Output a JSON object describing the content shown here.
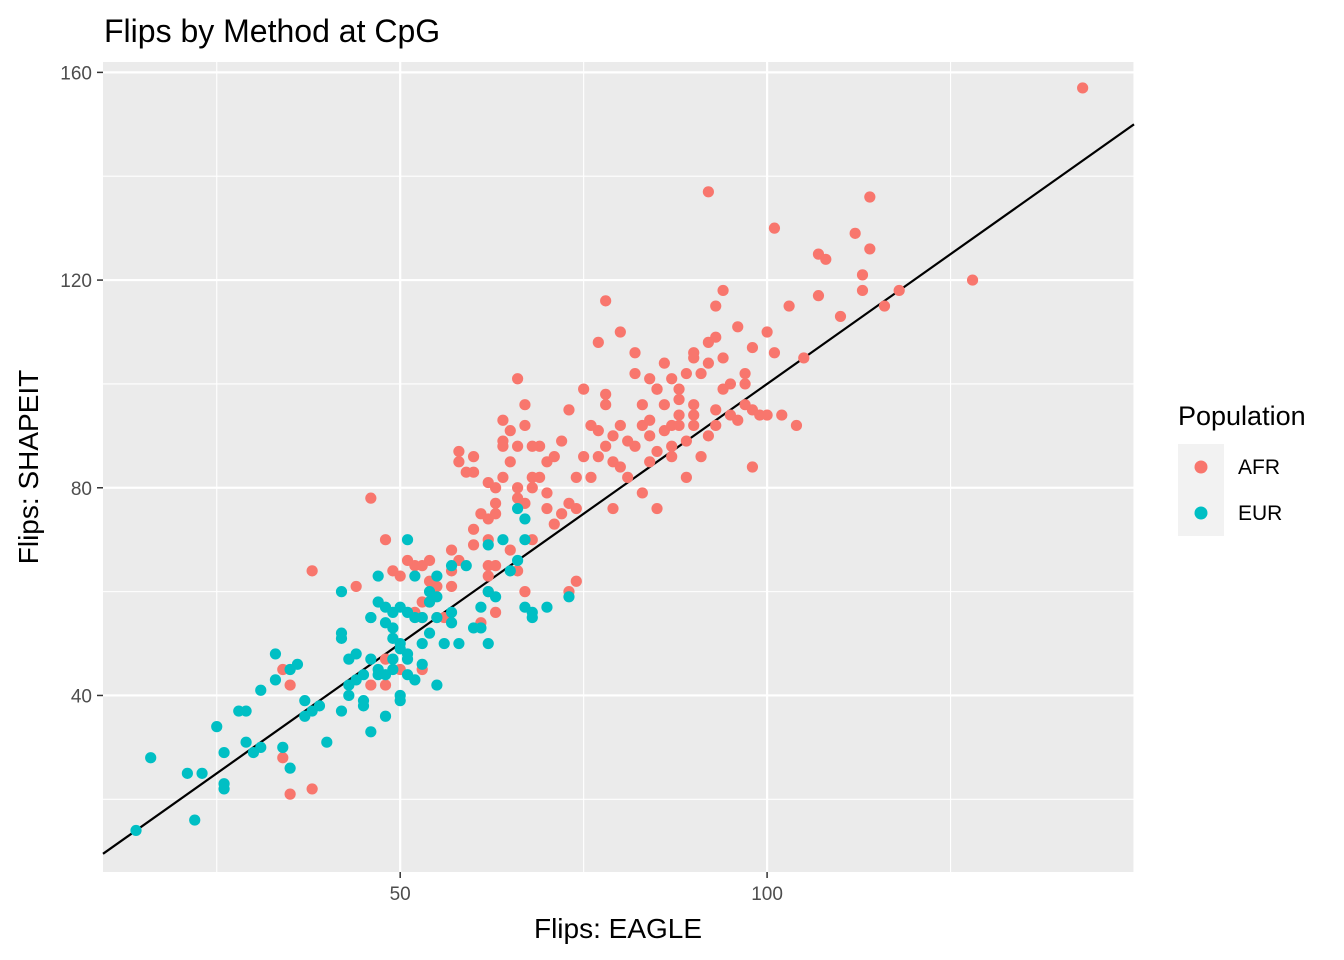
{
  "chart_data": {
    "type": "scatter",
    "title": "Flips by Method at CpG",
    "xlabel": "Flips: EAGLE",
    "ylabel": "Flips: SHAPEIT",
    "xlim": [
      9.5,
      150
    ],
    "ylim": [
      6,
      162
    ],
    "x_ticks": [
      50,
      100
    ],
    "y_ticks": [
      40,
      80,
      120,
      160
    ],
    "grid": true,
    "reference_line": {
      "slope": 1,
      "intercept": 0
    },
    "legend": {
      "title": "Population",
      "position": "right"
    },
    "series": [
      {
        "name": "AFR",
        "color": "#F8766D",
        "points": [
          [
            53,
            65
          ],
          [
            54,
            66
          ],
          [
            52,
            65
          ],
          [
            48,
            70
          ],
          [
            49,
            64
          ],
          [
            50,
            63
          ],
          [
            51,
            66
          ],
          [
            53,
            58
          ],
          [
            55,
            61
          ],
          [
            57,
            61
          ],
          [
            52,
            56
          ],
          [
            53,
            55
          ],
          [
            54,
            62
          ],
          [
            58,
            66
          ],
          [
            57,
            68
          ],
          [
            60,
            69
          ],
          [
            60,
            72
          ],
          [
            62,
            65
          ],
          [
            62,
            60
          ],
          [
            63,
            65
          ],
          [
            65,
            68
          ],
          [
            66,
            64
          ],
          [
            67,
            60
          ],
          [
            68,
            70
          ],
          [
            67,
            77
          ],
          [
            66,
            78
          ],
          [
            66,
            80
          ],
          [
            64,
            82
          ],
          [
            62,
            81
          ],
          [
            60,
            83
          ],
          [
            61,
            75
          ],
          [
            62,
            74
          ],
          [
            63,
            77
          ],
          [
            63,
            80
          ],
          [
            65,
            85
          ],
          [
            66,
            88
          ],
          [
            67,
            92
          ],
          [
            64,
            89
          ],
          [
            58,
            87
          ],
          [
            58,
            85
          ],
          [
            59,
            83
          ],
          [
            60,
            86
          ],
          [
            68,
            80
          ],
          [
            69,
            82
          ],
          [
            70,
            79
          ],
          [
            70,
            76
          ],
          [
            71,
            73
          ],
          [
            72,
            75
          ],
          [
            73,
            77
          ],
          [
            74,
            76
          ],
          [
            74,
            82
          ],
          [
            75,
            86
          ],
          [
            76,
            82
          ],
          [
            77,
            86
          ],
          [
            77,
            91
          ],
          [
            78,
            88
          ],
          [
            79,
            85
          ],
          [
            79,
            90
          ],
          [
            80,
            84
          ],
          [
            81,
            82
          ],
          [
            82,
            88
          ],
          [
            83,
            92
          ],
          [
            84,
            85
          ],
          [
            84,
            90
          ],
          [
            85,
            87
          ],
          [
            86,
            91
          ],
          [
            87,
            92
          ],
          [
            87,
            86
          ],
          [
            88,
            94
          ],
          [
            89,
            89
          ],
          [
            90,
            92
          ],
          [
            90,
            96
          ],
          [
            91,
            86
          ],
          [
            92,
            90
          ],
          [
            93,
            92
          ],
          [
            93,
            95
          ],
          [
            94,
            99
          ],
          [
            95,
            94
          ],
          [
            96,
            93
          ],
          [
            97,
            102
          ],
          [
            98,
            95
          ],
          [
            99,
            94
          ],
          [
            100,
            110
          ],
          [
            101,
            106
          ],
          [
            98,
            107
          ],
          [
            96,
            111
          ],
          [
            94,
            105
          ],
          [
            92,
            104
          ],
          [
            93,
            109
          ],
          [
            90,
            106
          ],
          [
            89,
            102
          ],
          [
            88,
            99
          ],
          [
            88,
            97
          ],
          [
            86,
            104
          ],
          [
            84,
            101
          ],
          [
            85,
            99
          ],
          [
            82,
            102
          ],
          [
            82,
            106
          ],
          [
            80,
            110
          ],
          [
            78,
            116
          ],
          [
            77,
            108
          ],
          [
            75,
            99
          ],
          [
            73,
            95
          ],
          [
            72,
            89
          ],
          [
            71,
            86
          ],
          [
            70,
            85
          ],
          [
            69,
            88
          ],
          [
            68,
            82
          ],
          [
            68,
            88
          ],
          [
            67,
            96
          ],
          [
            66,
            101
          ],
          [
            65,
            91
          ],
          [
            64,
            88
          ],
          [
            64,
            93
          ],
          [
            63,
            75
          ],
          [
            62,
            70
          ],
          [
            62,
            63
          ],
          [
            63,
            56
          ],
          [
            61,
            54
          ],
          [
            57,
            64
          ],
          [
            56,
            55
          ],
          [
            55,
            55
          ],
          [
            54,
            58
          ],
          [
            53,
            45
          ],
          [
            50,
            45
          ],
          [
            48,
            42
          ],
          [
            48,
            47
          ],
          [
            46,
            42
          ],
          [
            44,
            61
          ],
          [
            46,
            78
          ],
          [
            38,
            64
          ],
          [
            34,
            45
          ],
          [
            35,
            42
          ],
          [
            34,
            28
          ],
          [
            35,
            21
          ],
          [
            38,
            22
          ],
          [
            73,
            60
          ],
          [
            74,
            62
          ],
          [
            79,
            76
          ],
          [
            83,
            79
          ],
          [
            85,
            76
          ],
          [
            87,
            88
          ],
          [
            88,
            92
          ],
          [
            89,
            82
          ],
          [
            90,
            105
          ],
          [
            91,
            102
          ],
          [
            92,
            108
          ],
          [
            93,
            115
          ],
          [
            94,
            118
          ],
          [
            92,
            137
          ],
          [
            97,
            100
          ],
          [
            98,
            84
          ],
          [
            100,
            94
          ],
          [
            101,
            130
          ],
          [
            103,
            115
          ],
          [
            102,
            94
          ],
          [
            104,
            92
          ],
          [
            105,
            105
          ],
          [
            107,
            117
          ],
          [
            107,
            125
          ],
          [
            108,
            124
          ],
          [
            110,
            113
          ],
          [
            112,
            129
          ],
          [
            113,
            121
          ],
          [
            113,
            118
          ],
          [
            114,
            126
          ],
          [
            114,
            136
          ],
          [
            116,
            115
          ],
          [
            118,
            118
          ],
          [
            128,
            120
          ],
          [
            143,
            157
          ],
          [
            76,
            92
          ],
          [
            78,
            96
          ],
          [
            80,
            92
          ],
          [
            83,
            96
          ],
          [
            85,
            99
          ],
          [
            86,
            96
          ],
          [
            87,
            101
          ],
          [
            90,
            94
          ],
          [
            95,
            100
          ],
          [
            97,
            96
          ],
          [
            78,
            98
          ],
          [
            81,
            89
          ],
          [
            84,
            93
          ]
        ]
      },
      {
        "name": "EUR",
        "color": "#00BFC4",
        "points": [
          [
            14,
            14
          ],
          [
            16,
            28
          ],
          [
            21,
            25
          ],
          [
            22,
            16
          ],
          [
            23,
            25
          ],
          [
            25,
            34
          ],
          [
            26,
            29
          ],
          [
            26,
            23
          ],
          [
            26,
            22
          ],
          [
            28,
            37
          ],
          [
            29,
            37
          ],
          [
            29,
            31
          ],
          [
            30,
            29
          ],
          [
            31,
            30
          ],
          [
            31,
            41
          ],
          [
            33,
            43
          ],
          [
            33,
            48
          ],
          [
            34,
            30
          ],
          [
            35,
            45
          ],
          [
            35,
            26
          ],
          [
            36,
            46
          ],
          [
            37,
            39
          ],
          [
            37,
            36
          ],
          [
            38,
            37
          ],
          [
            39,
            38
          ],
          [
            42,
            60
          ],
          [
            42,
            52
          ],
          [
            42,
            51
          ],
          [
            43,
            47
          ],
          [
            43,
            42
          ],
          [
            43,
            40
          ],
          [
            44,
            43
          ],
          [
            45,
            44
          ],
          [
            45,
            39
          ],
          [
            45,
            38
          ],
          [
            46,
            47
          ],
          [
            46,
            55
          ],
          [
            47,
            44
          ],
          [
            48,
            36
          ],
          [
            48,
            44
          ],
          [
            49,
            47
          ],
          [
            49,
            51
          ],
          [
            49,
            56
          ],
          [
            50,
            57
          ],
          [
            51,
            56
          ],
          [
            50,
            50
          ],
          [
            51,
            48
          ],
          [
            52,
            55
          ],
          [
            53,
            55
          ],
          [
            53,
            50
          ],
          [
            54,
            58
          ],
          [
            54,
            52
          ],
          [
            55,
            59
          ],
          [
            55,
            55
          ],
          [
            56,
            50
          ],
          [
            57,
            56
          ],
          [
            57,
            54
          ],
          [
            58,
            50
          ],
          [
            60,
            53
          ],
          [
            61,
            57
          ],
          [
            61,
            53
          ],
          [
            62,
            60
          ],
          [
            62,
            50
          ],
          [
            63,
            59
          ],
          [
            64,
            70
          ],
          [
            65,
            64
          ],
          [
            66,
            66
          ],
          [
            66,
            76
          ],
          [
            67,
            74
          ],
          [
            67,
            70
          ],
          [
            67,
            57
          ],
          [
            68,
            55
          ],
          [
            68,
            56
          ],
          [
            70,
            57
          ],
          [
            73,
            59
          ],
          [
            55,
            42
          ],
          [
            53,
            46
          ],
          [
            50,
            40
          ],
          [
            50,
            39
          ],
          [
            52,
            43
          ],
          [
            51,
            44
          ],
          [
            51,
            47
          ],
          [
            48,
            54
          ],
          [
            48,
            57
          ],
          [
            49,
            53
          ],
          [
            46,
            55
          ],
          [
            47,
            58
          ],
          [
            47,
            63
          ],
          [
            52,
            63
          ],
          [
            54,
            60
          ],
          [
            55,
            63
          ],
          [
            57,
            65
          ],
          [
            59,
            65
          ],
          [
            62,
            69
          ],
          [
            51,
            70
          ],
          [
            40,
            31
          ],
          [
            42,
            37
          ],
          [
            44,
            48
          ],
          [
            46,
            33
          ],
          [
            47,
            45
          ],
          [
            49,
            45
          ],
          [
            50,
            49
          ]
        ]
      }
    ]
  }
}
